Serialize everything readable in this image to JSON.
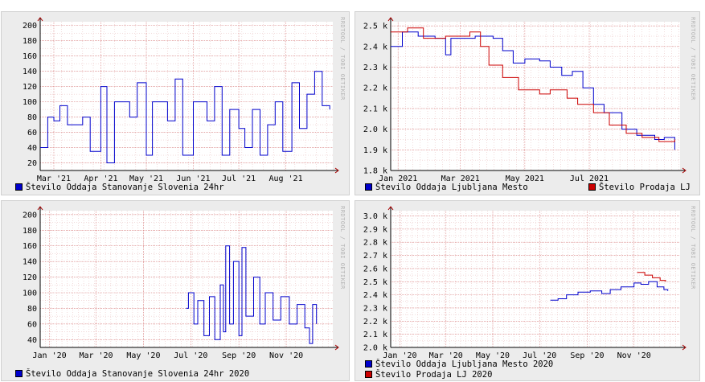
{
  "watermark": "RRDTOOL / TOBI OETIKER",
  "colors": {
    "blue": "#0000cc",
    "red": "#cc0000",
    "grid_minor": "#e6b8b8",
    "grid_major": "#d98080"
  },
  "chart_data": [
    {
      "type": "line",
      "id": "c1",
      "ylim": [
        10,
        205
      ],
      "yticks": [
        20,
        40,
        60,
        80,
        100,
        120,
        140,
        160,
        180,
        200
      ],
      "ytick_labels": [
        "20",
        "40",
        "60",
        "80",
        "100",
        "120",
        "140",
        "160",
        "180",
        "200"
      ],
      "xrange": [
        "2021-02-20",
        "2021-09-01"
      ],
      "xticks": [
        "2021-03-01",
        "2021-04-01",
        "2021-05-01",
        "2021-06-01",
        "2021-07-01",
        "2021-08-01"
      ],
      "xtick_labels": [
        "Mar '21",
        "Apr '21",
        "May '21",
        "Jun '21",
        "Jul '21",
        "Aug '21"
      ],
      "series": [
        {
          "name": "Število Oddaja Stanovanje Slovenia 24hr",
          "color": "#0000cc",
          "points": [
            [
              "2021-02-20",
              40
            ],
            [
              "2021-02-25",
              80
            ],
            [
              "2021-03-01",
              75
            ],
            [
              "2021-03-05",
              95
            ],
            [
              "2021-03-10",
              70
            ],
            [
              "2021-03-20",
              80
            ],
            [
              "2021-03-25",
              35
            ],
            [
              "2021-04-01",
              120
            ],
            [
              "2021-04-05",
              20
            ],
            [
              "2021-04-10",
              100
            ],
            [
              "2021-04-20",
              80
            ],
            [
              "2021-04-25",
              125
            ],
            [
              "2021-05-01",
              30
            ],
            [
              "2021-05-05",
              100
            ],
            [
              "2021-05-15",
              75
            ],
            [
              "2021-05-20",
              130
            ],
            [
              "2021-05-25",
              30
            ],
            [
              "2021-06-01",
              100
            ],
            [
              "2021-06-10",
              75
            ],
            [
              "2021-06-15",
              120
            ],
            [
              "2021-06-20",
              30
            ],
            [
              "2021-06-25",
              90
            ],
            [
              "2021-07-01",
              65
            ],
            [
              "2021-07-05",
              40
            ],
            [
              "2021-07-10",
              90
            ],
            [
              "2021-07-15",
              30
            ],
            [
              "2021-07-20",
              70
            ],
            [
              "2021-07-25",
              100
            ],
            [
              "2021-07-30",
              35
            ],
            [
              "2021-08-05",
              125
            ],
            [
              "2021-08-10",
              65
            ],
            [
              "2021-08-15",
              110
            ],
            [
              "2021-08-20",
              140
            ],
            [
              "2021-08-25",
              95
            ],
            [
              "2021-08-30",
              90
            ]
          ]
        }
      ]
    },
    {
      "type": "line",
      "id": "c2",
      "ylim": [
        1800,
        2520
      ],
      "yticks": [
        1800,
        1900,
        2000,
        2100,
        2200,
        2300,
        2400,
        2500
      ],
      "ytick_labels": [
        "1.8 k",
        "1.9 k",
        "2.0 k",
        "2.1 k",
        "2.2 k",
        "2.3 k",
        "2.4 k",
        "2.5 k"
      ],
      "xrange": [
        "2020-12-25",
        "2021-09-25"
      ],
      "xticks": [
        "2021-01-01",
        "2021-03-01",
        "2021-05-01",
        "2021-07-01"
      ],
      "xtick_labels": [
        "Jan 2021",
        "Mar 2021",
        "May 2021",
        "Jul 2021"
      ],
      "series": [
        {
          "name": "Število Oddaja Ljubljana Mesto",
          "color": "#0000cc",
          "points": [
            [
              "2020-12-25",
              2400
            ],
            [
              "2021-01-05",
              2470
            ],
            [
              "2021-01-20",
              2450
            ],
            [
              "2021-02-05",
              2440
            ],
            [
              "2021-02-15",
              2360
            ],
            [
              "2021-02-20",
              2440
            ],
            [
              "2021-03-15",
              2450
            ],
            [
              "2021-04-01",
              2440
            ],
            [
              "2021-04-10",
              2380
            ],
            [
              "2021-04-20",
              2320
            ],
            [
              "2021-05-01",
              2340
            ],
            [
              "2021-05-15",
              2330
            ],
            [
              "2021-05-25",
              2300
            ],
            [
              "2021-06-05",
              2260
            ],
            [
              "2021-06-15",
              2280
            ],
            [
              "2021-06-25",
              2200
            ],
            [
              "2021-07-05",
              2120
            ],
            [
              "2021-07-15",
              2080
            ],
            [
              "2021-08-01",
              2000
            ],
            [
              "2021-08-15",
              1970
            ],
            [
              "2021-09-01",
              1950
            ],
            [
              "2021-09-10",
              1960
            ],
            [
              "2021-09-20",
              1900
            ]
          ]
        },
        {
          "name": "Število Prodaja LJ",
          "color": "#cc0000",
          "points": [
            [
              "2020-12-25",
              2470
            ],
            [
              "2021-01-10",
              2490
            ],
            [
              "2021-01-25",
              2440
            ],
            [
              "2021-02-15",
              2450
            ],
            [
              "2021-03-10",
              2470
            ],
            [
              "2021-03-20",
              2400
            ],
            [
              "2021-03-28",
              2310
            ],
            [
              "2021-04-10",
              2250
            ],
            [
              "2021-04-25",
              2190
            ],
            [
              "2021-05-15",
              2170
            ],
            [
              "2021-05-25",
              2190
            ],
            [
              "2021-06-10",
              2150
            ],
            [
              "2021-06-20",
              2120
            ],
            [
              "2021-07-05",
              2080
            ],
            [
              "2021-07-20",
              2020
            ],
            [
              "2021-08-05",
              1980
            ],
            [
              "2021-08-20",
              1960
            ],
            [
              "2021-09-05",
              1940
            ],
            [
              "2021-09-20",
              1950
            ]
          ]
        }
      ]
    },
    {
      "type": "line",
      "id": "c3",
      "ylim": [
        30,
        205
      ],
      "yticks": [
        40,
        60,
        80,
        100,
        120,
        140,
        160,
        180,
        200
      ],
      "ytick_labels": [
        "40",
        "60",
        "80",
        "100",
        "120",
        "140",
        "160",
        "180",
        "200"
      ],
      "xrange": [
        "2019-12-20",
        "2020-12-31"
      ],
      "xticks": [
        "2020-01-01",
        "2020-03-01",
        "2020-05-01",
        "2020-07-01",
        "2020-09-01",
        "2020-11-01"
      ],
      "xtick_labels": [
        "Jan '20",
        "Mar '20",
        "May '20",
        "Jul '20",
        "Sep '20",
        "Nov '20"
      ],
      "series": [
        {
          "name": "Število Oddaja Stanovanje Slovenia 24hr 2020",
          "color": "#0000cc",
          "points": [
            [
              "2020-06-25",
              80
            ],
            [
              "2020-06-28",
              100
            ],
            [
              "2020-07-05",
              60
            ],
            [
              "2020-07-10",
              90
            ],
            [
              "2020-07-18",
              45
            ],
            [
              "2020-07-25",
              95
            ],
            [
              "2020-08-01",
              40
            ],
            [
              "2020-08-08",
              110
            ],
            [
              "2020-08-12",
              50
            ],
            [
              "2020-08-15",
              160
            ],
            [
              "2020-08-20",
              60
            ],
            [
              "2020-08-25",
              140
            ],
            [
              "2020-09-01",
              45
            ],
            [
              "2020-09-05",
              158
            ],
            [
              "2020-09-10",
              70
            ],
            [
              "2020-09-20",
              120
            ],
            [
              "2020-09-28",
              60
            ],
            [
              "2020-10-05",
              100
            ],
            [
              "2020-10-15",
              65
            ],
            [
              "2020-10-25",
              95
            ],
            [
              "2020-11-05",
              60
            ],
            [
              "2020-11-15",
              85
            ],
            [
              "2020-11-25",
              55
            ],
            [
              "2020-12-01",
              35
            ],
            [
              "2020-12-05",
              85
            ],
            [
              "2020-12-10",
              60
            ]
          ]
        }
      ]
    },
    {
      "type": "line",
      "id": "c4",
      "ylim": [
        2000,
        3040
      ],
      "yticks": [
        2000,
        2100,
        2200,
        2300,
        2400,
        2500,
        2600,
        2700,
        2800,
        2900,
        3000
      ],
      "ytick_labels": [
        "2.0 k",
        "2.1 k",
        "2.2 k",
        "2.3 k",
        "2.4 k",
        "2.5 k",
        "2.6 k",
        "2.7 k",
        "2.8 k",
        "2.9 k",
        "3.0 k"
      ],
      "xrange": [
        "2019-12-20",
        "2020-12-31"
      ],
      "xticks": [
        "2020-01-01",
        "2020-03-01",
        "2020-05-01",
        "2020-07-01",
        "2020-09-01",
        "2020-11-01"
      ],
      "xtick_labels": [
        "Jan '20",
        "Mar '20",
        "May '20",
        "Jul '20",
        "Sep '20",
        "Nov '20"
      ],
      "series": [
        {
          "name": "Število Oddaja Ljubljana Mesto 2020",
          "color": "#0000cc",
          "points": [
            [
              "2020-07-15",
              2360
            ],
            [
              "2020-07-25",
              2370
            ],
            [
              "2020-08-05",
              2400
            ],
            [
              "2020-08-20",
              2420
            ],
            [
              "2020-09-05",
              2430
            ],
            [
              "2020-09-20",
              2410
            ],
            [
              "2020-10-01",
              2440
            ],
            [
              "2020-10-15",
              2460
            ],
            [
              "2020-11-01",
              2490
            ],
            [
              "2020-11-10",
              2480
            ],
            [
              "2020-11-20",
              2500
            ],
            [
              "2020-12-01",
              2460
            ],
            [
              "2020-12-10",
              2440
            ],
            [
              "2020-12-15",
              2430
            ]
          ]
        },
        {
          "name": "Število Prodaja LJ 2020",
          "color": "#cc0000",
          "points": [
            [
              "2020-11-05",
              2570
            ],
            [
              "2020-11-15",
              2550
            ],
            [
              "2020-11-25",
              2530
            ],
            [
              "2020-12-05",
              2510
            ],
            [
              "2020-12-12",
              2500
            ]
          ]
        }
      ]
    }
  ]
}
